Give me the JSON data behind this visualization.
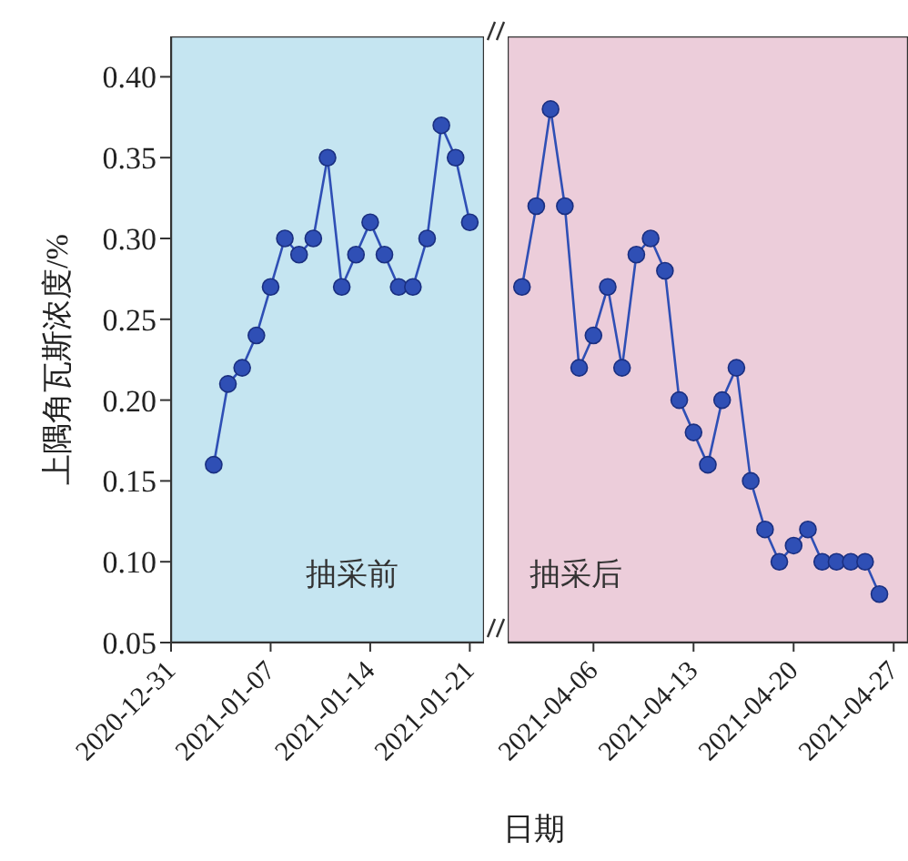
{
  "chart_data": [
    {
      "type": "line",
      "ylabel": "上隅角瓦斯浓度/%",
      "xlabel": "日期",
      "annotations": [
        "抽采前"
      ],
      "marker": "circle",
      "grid": false,
      "legend": false,
      "x": [
        "2021-01-03",
        "2021-01-04",
        "2021-01-05",
        "2021-01-06",
        "2021-01-07",
        "2021-01-08",
        "2021-01-09",
        "2021-01-10",
        "2021-01-11",
        "2021-01-12",
        "2021-01-13",
        "2021-01-14",
        "2021-01-15",
        "2021-01-16",
        "2021-01-17",
        "2021-01-18",
        "2021-01-19",
        "2021-01-20",
        "2021-01-21"
      ],
      "series": [
        {
          "color": "#2f4fb5",
          "values": [
            0.16,
            0.21,
            0.22,
            0.24,
            0.27,
            0.3,
            0.29,
            0.3,
            0.35,
            0.27,
            0.29,
            0.31,
            0.29,
            0.27,
            0.27,
            0.3,
            0.37,
            0.35,
            0.31
          ]
        }
      ],
      "xlim": [
        "2020-12-31",
        "2021-01-22"
      ],
      "xticks": [
        "2020-12-31",
        "2021-01-07",
        "2021-01-14",
        "2021-01-21"
      ],
      "ylim": [
        0.05,
        0.425
      ],
      "yticks": [
        0.05,
        {
          "value": 0.1,
          "label": "0.10"
        },
        0.15,
        {
          "value": 0.2,
          "label": "0.20"
        },
        0.25,
        {
          "value": 0.3,
          "label": "0.30"
        },
        0.35,
        {
          "value": 0.4,
          "label": "0.40"
        }
      ],
      "bands": [
        {
          "axis": "x",
          "from": "2020-12-31",
          "to": "2021-01-22",
          "color": "#c5e5f1"
        }
      ]
    },
    {
      "type": "line",
      "annotations": [
        "抽采后"
      ],
      "marker": "circle",
      "grid": false,
      "legend": false,
      "tick_labels": "x",
      "x": [
        "2021-04-01",
        "2021-04-02",
        "2021-04-03",
        "2021-04-04",
        "2021-04-05",
        "2021-04-06",
        "2021-04-07",
        "2021-04-08",
        "2021-04-09",
        "2021-04-10",
        "2021-04-11",
        "2021-04-12",
        "2021-04-13",
        "2021-04-14",
        "2021-04-15",
        "2021-04-16",
        "2021-04-17",
        "2021-04-18",
        "2021-04-19",
        "2021-04-20",
        "2021-04-21",
        "2021-04-22",
        "2021-04-23",
        "2021-04-24",
        "2021-04-25",
        "2021-04-26"
      ],
      "series": [
        {
          "color": "#2f4fb5",
          "values": [
            0.27,
            0.32,
            0.38,
            0.32,
            0.22,
            0.24,
            0.27,
            0.22,
            0.29,
            0.3,
            0.28,
            0.2,
            0.18,
            0.16,
            0.2,
            0.22,
            0.15,
            0.12,
            0.1,
            0.11,
            0.12,
            0.1,
            0.1,
            0.1,
            0.1,
            0.08
          ]
        }
      ],
      "xlim": [
        "2021-03-31",
        "2021-04-28"
      ],
      "xticks": [
        "2021-04-06",
        "2021-04-13",
        "2021-04-20",
        "2021-04-27"
      ],
      "ylim": [
        0.05,
        0.425
      ],
      "yticks": [
        0.05,
        0.1,
        0.15,
        0.2,
        0.25,
        0.3,
        0.35,
        0.4
      ],
      "bands": [
        {
          "axis": "x",
          "from": "2021-03-31",
          "to": "2021-04-28",
          "color": "#eccdda"
        }
      ]
    }
  ]
}
